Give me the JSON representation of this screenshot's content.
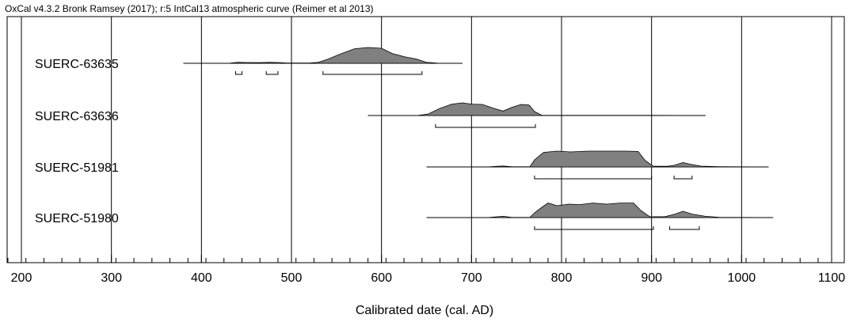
{
  "header": "OxCal v4.3.2 Bronk Ramsey (2017); r:5 IntCal13 atmospheric curve (Reimer et al 2013)",
  "chart_data": {
    "type": "area",
    "title": "",
    "xlabel": "Calibrated date (cal. AD)",
    "xlim": [
      185,
      1100
    ],
    "x_ticks": [
      200,
      300,
      400,
      500,
      600,
      700,
      800,
      900,
      1000,
      1100
    ],
    "minor_tick_step": 20,
    "grid": true,
    "series": [
      {
        "name": "SUERC-63635",
        "range": [
          380,
          690
        ],
        "density": [
          [
            380,
            0
          ],
          [
            430,
            0
          ],
          [
            440,
            0.06
          ],
          [
            450,
            0.05
          ],
          [
            465,
            0.04
          ],
          [
            475,
            0.06
          ],
          [
            485,
            0.05
          ],
          [
            495,
            0.02
          ],
          [
            520,
            0.02
          ],
          [
            530,
            0.06
          ],
          [
            540,
            0.25
          ],
          [
            555,
            0.6
          ],
          [
            570,
            0.92
          ],
          [
            585,
            1.0
          ],
          [
            600,
            0.95
          ],
          [
            612,
            0.62
          ],
          [
            625,
            0.42
          ],
          [
            638,
            0.28
          ],
          [
            650,
            0.06
          ],
          [
            665,
            0
          ],
          [
            690,
            0
          ]
        ],
        "intervals": [
          [
            438,
            445
          ],
          [
            472,
            485
          ],
          [
            535,
            645
          ]
        ]
      },
      {
        "name": "SUERC-63636",
        "range": [
          585,
          960
        ],
        "density": [
          [
            585,
            0
          ],
          [
            640,
            0
          ],
          [
            652,
            0.1
          ],
          [
            665,
            0.45
          ],
          [
            678,
            0.72
          ],
          [
            690,
            0.8
          ],
          [
            700,
            0.72
          ],
          [
            712,
            0.7
          ],
          [
            725,
            0.45
          ],
          [
            735,
            0.28
          ],
          [
            745,
            0.52
          ],
          [
            755,
            0.7
          ],
          [
            764,
            0.66
          ],
          [
            770,
            0.25
          ],
          [
            778,
            0.02
          ],
          [
            800,
            0.01
          ],
          [
            850,
            0.01
          ],
          [
            900,
            0.01
          ],
          [
            960,
            0
          ]
        ],
        "intervals": [
          [
            660,
            771
          ]
        ]
      },
      {
        "name": "SUERC-51981",
        "range": [
          650,
          1030
        ],
        "density": [
          [
            650,
            0
          ],
          [
            720,
            0.01
          ],
          [
            735,
            0.06
          ],
          [
            745,
            0.01
          ],
          [
            765,
            0.02
          ],
          [
            770,
            0.45
          ],
          [
            780,
            0.92
          ],
          [
            795,
            1.0
          ],
          [
            810,
            0.95
          ],
          [
            830,
            1.0
          ],
          [
            850,
            1.0
          ],
          [
            870,
            1.0
          ],
          [
            885,
            0.98
          ],
          [
            893,
            0.4
          ],
          [
            902,
            0.04
          ],
          [
            918,
            0.04
          ],
          [
            925,
            0.1
          ],
          [
            935,
            0.28
          ],
          [
            942,
            0.18
          ],
          [
            955,
            0.05
          ],
          [
            975,
            0.02
          ],
          [
            1030,
            0
          ]
        ],
        "intervals": [
          [
            770,
            900
          ],
          [
            925,
            945
          ]
        ]
      },
      {
        "name": "SUERC-51980",
        "range": [
          650,
          1035
        ],
        "density": [
          [
            650,
            0
          ],
          [
            720,
            0.01
          ],
          [
            735,
            0.08
          ],
          [
            745,
            0.01
          ],
          [
            765,
            0.02
          ],
          [
            770,
            0.3
          ],
          [
            777,
            0.6
          ],
          [
            785,
            0.92
          ],
          [
            795,
            0.75
          ],
          [
            808,
            0.85
          ],
          [
            820,
            0.82
          ],
          [
            835,
            0.92
          ],
          [
            850,
            0.85
          ],
          [
            865,
            0.92
          ],
          [
            880,
            0.92
          ],
          [
            888,
            0.45
          ],
          [
            898,
            0.05
          ],
          [
            915,
            0.06
          ],
          [
            925,
            0.2
          ],
          [
            935,
            0.4
          ],
          [
            945,
            0.22
          ],
          [
            960,
            0.08
          ],
          [
            975,
            0.02
          ],
          [
            1035,
            0
          ]
        ],
        "intervals": [
          [
            770,
            902
          ],
          [
            920,
            953
          ]
        ]
      }
    ]
  }
}
